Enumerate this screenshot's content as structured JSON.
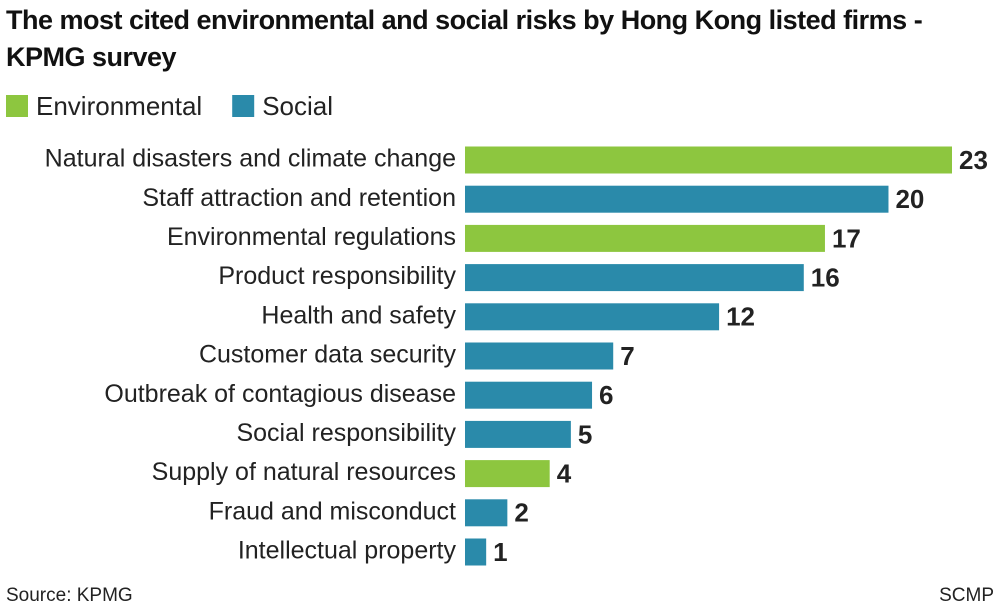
{
  "chart_data": {
    "type": "bar",
    "orientation": "horizontal",
    "title": "The most cited environmental and social risks by Hong Kong listed firms - KPMG survey",
    "categories": [
      "Natural disasters and climate change",
      "Staff attraction and retention",
      "Environmental regulations",
      "Product responsibility",
      "Health and safety",
      "Customer data security",
      "Outbreak of contagious disease",
      "Social responsibility",
      "Supply of natural resources",
      "Fraud and misconduct",
      "Intellectual property"
    ],
    "series": [
      {
        "name": "Environmental",
        "color": "#8dc63f",
        "values": [
          23,
          null,
          17,
          null,
          null,
          null,
          null,
          null,
          4,
          null,
          null
        ]
      },
      {
        "name": "Social",
        "color": "#2a8aaa",
        "values": [
          null,
          20,
          null,
          16,
          12,
          7,
          6,
          5,
          null,
          2,
          1
        ]
      }
    ],
    "source": "Source: KPMG",
    "credit": "SCMP"
  }
}
